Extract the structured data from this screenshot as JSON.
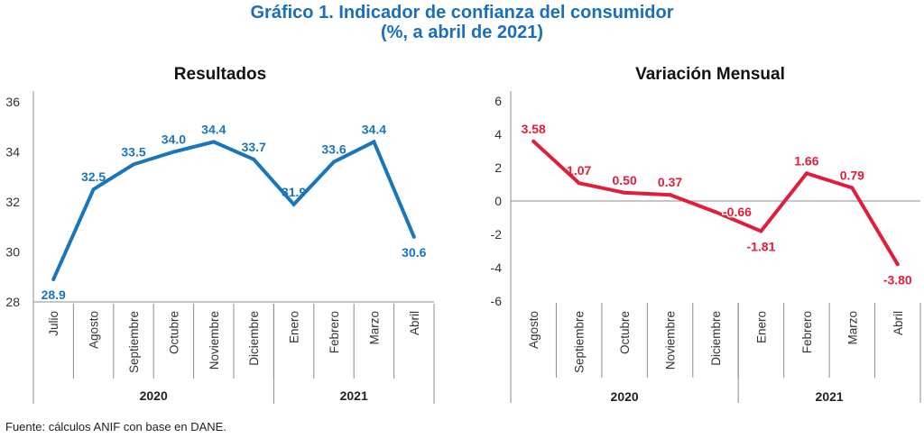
{
  "header": {
    "title_line1": "Gráfico 1. Indicador de confianza del consumidor",
    "title_line2": "(%, a abril de 2021)"
  },
  "footer": {
    "source": "Fuente: cálculos ANIF con base en DANE."
  },
  "colors": {
    "title": "#1a6fba",
    "series_left": "#1a75bd",
    "series_right": "#e01e3c",
    "axis": "#8c8c8c"
  },
  "chart_data": [
    {
      "type": "line",
      "title": "Resultados",
      "xlabel": "",
      "ylabel": "",
      "categories": [
        "Julio",
        "Agosto",
        "Septiembre",
        "Octubre",
        "Noviembre",
        "Diciembre",
        "Enero",
        "Febrero",
        "Marzo",
        "Abril"
      ],
      "groups": [
        {
          "label": "2020",
          "span": 6
        },
        {
          "label": "2021",
          "span": 4
        }
      ],
      "series": [
        {
          "name": "Resultados",
          "values": [
            28.9,
            32.5,
            33.5,
            34.0,
            34.4,
            33.7,
            31.9,
            33.6,
            34.4,
            30.6
          ]
        }
      ],
      "data_labels": [
        "28.9",
        "32.5",
        "33.5",
        "34.0",
        "34.4",
        "33.7",
        "31.9",
        "33.6",
        "34.4",
        "30.6"
      ],
      "label_positions": [
        "below",
        "above",
        "above",
        "above",
        "above",
        "above",
        "above",
        "above",
        "above",
        "below"
      ],
      "ylim": [
        28,
        36
      ],
      "yticks": [
        28,
        30,
        32,
        34,
        36
      ],
      "grid": false,
      "legend": "none"
    },
    {
      "type": "line",
      "title": "Variación Mensual",
      "xlabel": "",
      "ylabel": "",
      "categories": [
        "Agosto",
        "Septiembre",
        "Octubre",
        "Noviembre",
        "Diciembre",
        "Enero",
        "Febrero",
        "Marzo",
        "Abril"
      ],
      "groups": [
        {
          "label": "2020",
          "span": 5
        },
        {
          "label": "2021",
          "span": 4
        }
      ],
      "series": [
        {
          "name": "Variación Mensual",
          "values": [
            3.58,
            1.07,
            0.5,
            0.37,
            -0.66,
            -1.81,
            1.66,
            0.79,
            -3.8
          ]
        }
      ],
      "data_labels": [
        "3.58",
        "1.07",
        "0.50",
        "0.37",
        "-0.66",
        "-1.81",
        "1.66",
        "0.79",
        "-3.80"
      ],
      "label_positions": [
        "above",
        "above",
        "above",
        "above",
        "right",
        "below",
        "above",
        "above",
        "below"
      ],
      "ylim": [
        -6,
        6
      ],
      "yticks": [
        -6,
        -4,
        -2,
        0,
        2,
        4,
        6
      ],
      "zero_line": true,
      "grid": false,
      "legend": "none"
    }
  ]
}
